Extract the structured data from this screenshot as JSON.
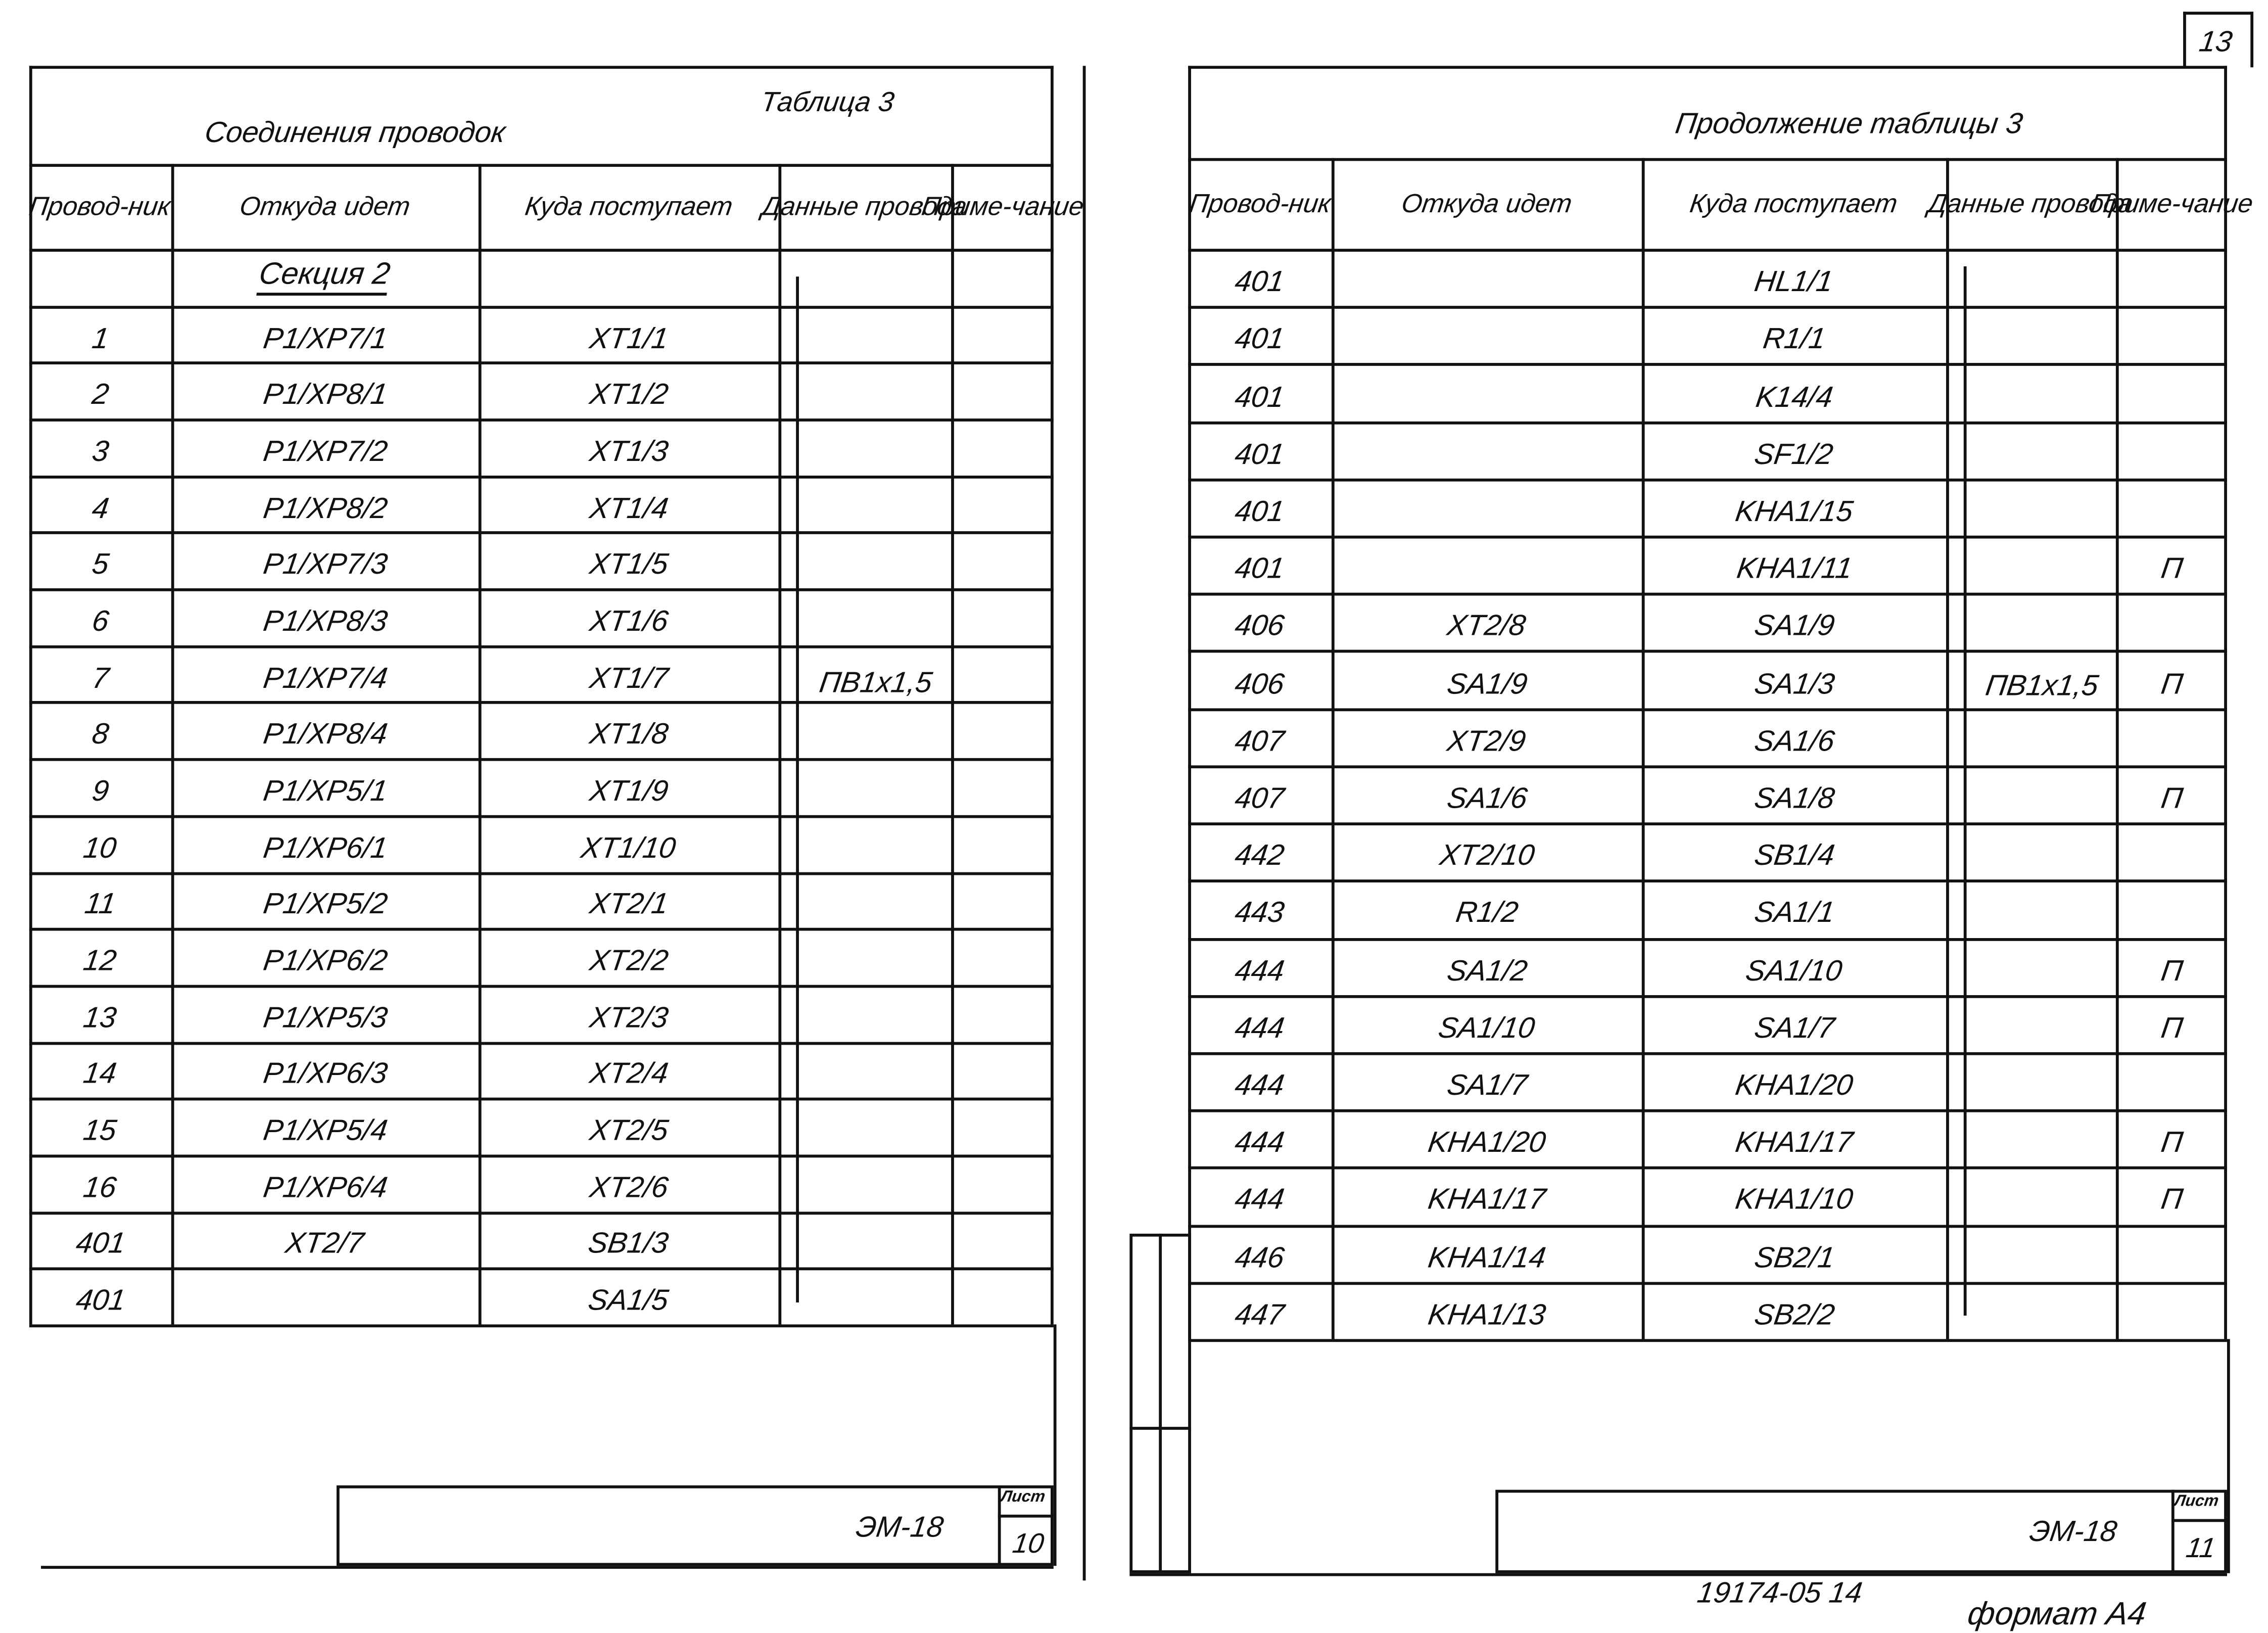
{
  "page_number": "13",
  "left": {
    "title": "Соединения проводок",
    "table_label": "Таблица 3",
    "headers": [
      "Провод-ник",
      "Откуда идет",
      "Куда поступает",
      "Данные провода",
      "Приме-чание"
    ],
    "section": "Секция 2",
    "rows": [
      {
        "wire": "1",
        "from": "P1/XP7/1",
        "to": "XT1/1",
        "note": ""
      },
      {
        "wire": "2",
        "from": "P1/XP8/1",
        "to": "XT1/2",
        "note": ""
      },
      {
        "wire": "3",
        "from": "P1/XP7/2",
        "to": "XT1/3",
        "note": ""
      },
      {
        "wire": "4",
        "from": "P1/XP8/2",
        "to": "XT1/4",
        "note": ""
      },
      {
        "wire": "5",
        "from": "P1/XP7/3",
        "to": "XT1/5",
        "note": ""
      },
      {
        "wire": "6",
        "from": "P1/XP8/3",
        "to": "XT1/6",
        "note": ""
      },
      {
        "wire": "7",
        "from": "P1/XP7/4",
        "to": "XT1/7",
        "note": ""
      },
      {
        "wire": "8",
        "from": "P1/XP8/4",
        "to": "XT1/8",
        "note": ""
      },
      {
        "wire": "9",
        "from": "P1/XP5/1",
        "to": "XT1/9",
        "note": ""
      },
      {
        "wire": "10",
        "from": "P1/XP6/1",
        "to": "XT1/10",
        "note": ""
      },
      {
        "wire": "11",
        "from": "P1/XP5/2",
        "to": "XT2/1",
        "note": ""
      },
      {
        "wire": "12",
        "from": "P1/XP6/2",
        "to": "XT2/2",
        "note": ""
      },
      {
        "wire": "13",
        "from": "P1/XP5/3",
        "to": "XT2/3",
        "note": ""
      },
      {
        "wire": "14",
        "from": "P1/XP6/3",
        "to": "XT2/4",
        "note": ""
      },
      {
        "wire": "15",
        "from": "P1/XP5/4",
        "to": "XT2/5",
        "note": ""
      },
      {
        "wire": "16",
        "from": "P1/XP6/4",
        "to": "XT2/6",
        "note": ""
      },
      {
        "wire": "401",
        "from": "XT2/7",
        "to": "SB1/3",
        "note": ""
      },
      {
        "wire": "401",
        "from": "",
        "to": "SA1/5",
        "note": ""
      }
    ],
    "wire_data": "ПВ1х1,5",
    "doc_code": "ЭМ-18",
    "sheet_label": "Лист",
    "sheet_number": "10"
  },
  "right": {
    "title": "Продолжение таблицы 3",
    "headers": [
      "Провод-ник",
      "Откуда идет",
      "Куда поступает",
      "Данные провода",
      "Приме-чание"
    ],
    "rows": [
      {
        "wire": "401",
        "from": "",
        "to": "HL1/1",
        "note": ""
      },
      {
        "wire": "401",
        "from": "",
        "to": "R1/1",
        "note": ""
      },
      {
        "wire": "401",
        "from": "",
        "to": "K14/4",
        "note": ""
      },
      {
        "wire": "401",
        "from": "",
        "to": "SF1/2",
        "note": ""
      },
      {
        "wire": "401",
        "from": "",
        "to": "KHA1/15",
        "note": ""
      },
      {
        "wire": "401",
        "from": "",
        "to": "KHA1/11",
        "note": "П"
      },
      {
        "wire": "406",
        "from": "XT2/8",
        "to": "SA1/9",
        "note": ""
      },
      {
        "wire": "406",
        "from": "SA1/9",
        "to": "SA1/3",
        "note": "П"
      },
      {
        "wire": "407",
        "from": "XT2/9",
        "to": "SA1/6",
        "note": ""
      },
      {
        "wire": "407",
        "from": "SA1/6",
        "to": "SA1/8",
        "note": "П"
      },
      {
        "wire": "442",
        "from": "XT2/10",
        "to": "SB1/4",
        "note": ""
      },
      {
        "wire": "443",
        "from": "R1/2",
        "to": "SA1/1",
        "note": ""
      },
      {
        "wire": "444",
        "from": "SA1/2",
        "to": "SA1/10",
        "note": "П"
      },
      {
        "wire": "444",
        "from": "SA1/10",
        "to": "SA1/7",
        "note": "П"
      },
      {
        "wire": "444",
        "from": "SA1/7",
        "to": "KHA1/20",
        "note": ""
      },
      {
        "wire": "444",
        "from": "KHA1/20",
        "to": "KHA1/17",
        "note": "П"
      },
      {
        "wire": "444",
        "from": "KHA1/17",
        "to": "KHA1/10",
        "note": "П"
      },
      {
        "wire": "446",
        "from": "KHA1/14",
        "to": "SB2/1",
        "note": ""
      },
      {
        "wire": "447",
        "from": "KHA1/13",
        "to": "SB2/2",
        "note": ""
      }
    ],
    "wire_data": "ПВ1х1,5",
    "doc_code": "ЭМ-18",
    "sheet_label": "Лист",
    "sheet_number": "11"
  },
  "footer": {
    "inventory": "19174-05  14",
    "format": "формат А4"
  }
}
